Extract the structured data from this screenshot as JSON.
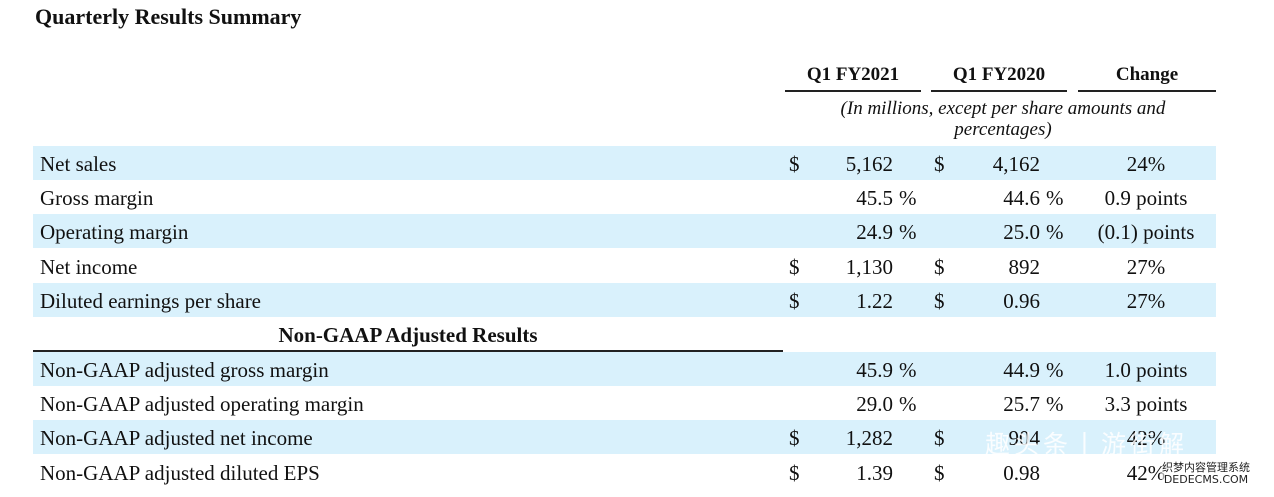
{
  "title": "Quarterly Results Summary",
  "columns": {
    "q1_fy2021": "Q1 FY2021",
    "q1_fy2020": "Q1 FY2020",
    "change": "Change"
  },
  "units_note": "(In millions, except per share amounts and percentages)",
  "section_heading": "Non-GAAP Adjusted Results",
  "rows": [
    {
      "label": "Net sales",
      "cur1": "$",
      "v1": "5,162",
      "pct1": "",
      "cur2": "$",
      "v2": "4,162",
      "pct2": "",
      "change": "24%"
    },
    {
      "label": "Gross margin",
      "cur1": "",
      "v1": "45.5",
      "pct1": "%",
      "cur2": "",
      "v2": "44.6",
      "pct2": "%",
      "change": "0.9 points"
    },
    {
      "label": "Operating margin",
      "cur1": "",
      "v1": "24.9",
      "pct1": "%",
      "cur2": "",
      "v2": "25.0",
      "pct2": "%",
      "change": "(0.1) points"
    },
    {
      "label": "Net income",
      "cur1": "$",
      "v1": "1,130",
      "pct1": "",
      "cur2": "$",
      "v2": "892",
      "pct2": "",
      "change": "27%"
    },
    {
      "label": "Diluted earnings per share",
      "cur1": "$",
      "v1": "1.22",
      "pct1": "",
      "cur2": "$",
      "v2": "0.96",
      "pct2": "",
      "change": "27%"
    },
    {
      "label": "Non-GAAP adjusted gross margin",
      "cur1": "",
      "v1": "45.9",
      "pct1": "%",
      "cur2": "",
      "v2": "44.9",
      "pct2": "%",
      "change": "1.0 points"
    },
    {
      "label": "Non-GAAP adjusted operating margin",
      "cur1": "",
      "v1": "29.0",
      "pct1": "%",
      "cur2": "",
      "v2": "25.7",
      "pct2": "%",
      "change": "3.3 points"
    },
    {
      "label": "Non-GAAP adjusted net income",
      "cur1": "$",
      "v1": "1,282",
      "pct1": "",
      "cur2": "$",
      "v2": "904",
      "pct2": "",
      "change": "42%"
    },
    {
      "label": "Non-GAAP adjusted diluted EPS",
      "cur1": "$",
      "v1": "1.39",
      "pct1": "",
      "cur2": "$",
      "v2": "0.98",
      "pct2": "",
      "change": "42%"
    }
  ],
  "watermark": {
    "text": "趣头条丨游街解",
    "site_cn": "织梦内容管理系统",
    "site": "DEDECMS.COM"
  }
}
